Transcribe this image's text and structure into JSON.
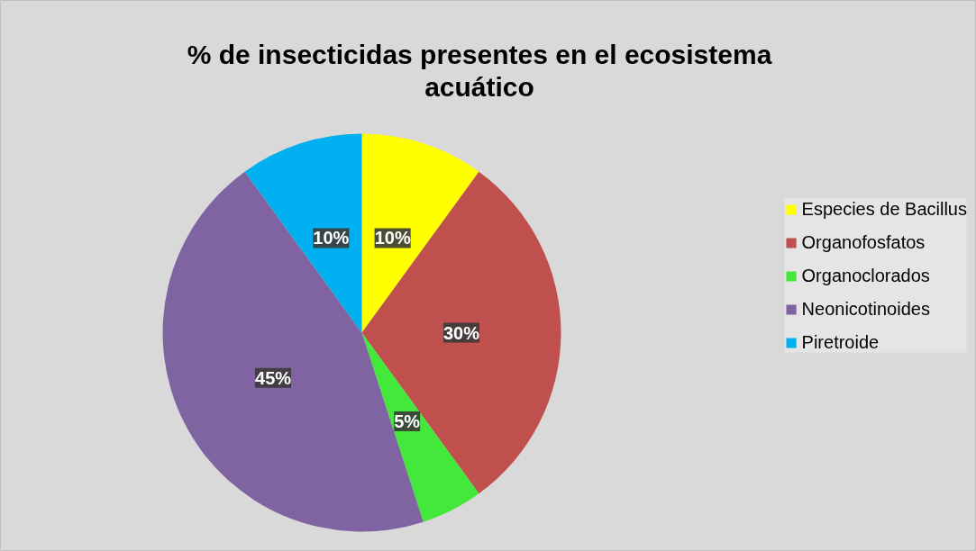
{
  "chart_data": {
    "type": "pie",
    "title": "% de insecticidas presentes en el ecosistema acuático",
    "categories": [
      "Especies de Bacillus",
      "Organofosfatos",
      "Organoclorados",
      "Neonicotinoides",
      "Piretroide"
    ],
    "values": [
      10,
      30,
      5,
      45,
      10
    ],
    "colors": [
      "#ffff00",
      "#c0504d",
      "#43e83b",
      "#8064a2",
      "#00b0f0"
    ],
    "value_labels": [
      "10%",
      "30%",
      "5%",
      "45%",
      "10%"
    ],
    "legend": "right"
  }
}
